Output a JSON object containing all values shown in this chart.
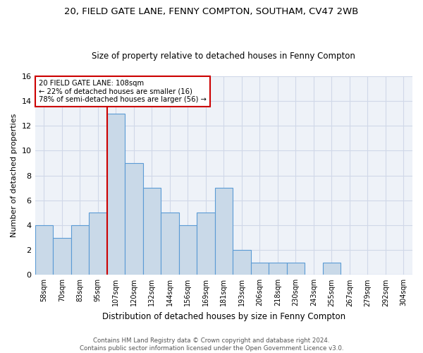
{
  "title": "20, FIELD GATE LANE, FENNY COMPTON, SOUTHAM, CV47 2WB",
  "subtitle": "Size of property relative to detached houses in Fenny Compton",
  "xlabel": "Distribution of detached houses by size in Fenny Compton",
  "ylabel": "Number of detached properties",
  "categories": [
    "58sqm",
    "70sqm",
    "83sqm",
    "95sqm",
    "107sqm",
    "120sqm",
    "132sqm",
    "144sqm",
    "156sqm",
    "169sqm",
    "181sqm",
    "193sqm",
    "206sqm",
    "218sqm",
    "230sqm",
    "243sqm",
    "255sqm",
    "267sqm",
    "279sqm",
    "292sqm",
    "304sqm"
  ],
  "values": [
    4,
    3,
    4,
    5,
    13,
    9,
    7,
    5,
    4,
    5,
    7,
    2,
    1,
    1,
    1,
    0,
    1,
    0,
    0,
    0,
    0
  ],
  "bar_color": "#c9d9e8",
  "bar_edge_color": "#5b9bd5",
  "highlight_index": 4,
  "highlight_line_color": "#cc0000",
  "ylim": [
    0,
    16
  ],
  "yticks": [
    0,
    2,
    4,
    6,
    8,
    10,
    12,
    14,
    16
  ],
  "annotation_line1": "20 FIELD GATE LANE: 108sqm",
  "annotation_line2": "← 22% of detached houses are smaller (16)",
  "annotation_line3": "78% of semi-detached houses are larger (56) →",
  "annotation_box_color": "#cc0000",
  "footer1": "Contains HM Land Registry data © Crown copyright and database right 2024.",
  "footer2": "Contains public sector information licensed under the Open Government Licence v3.0.",
  "grid_color": "#d0d8e8",
  "background_color": "#eef2f8"
}
